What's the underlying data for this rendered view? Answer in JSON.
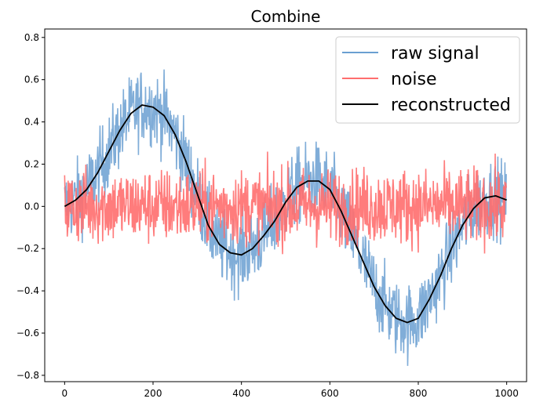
{
  "chart_data": {
    "type": "line",
    "title": "Combine",
    "xlabel": "",
    "ylabel": "",
    "xlim": [
      -45,
      1045
    ],
    "ylim": [
      -0.83,
      0.84
    ],
    "x_ticks": [
      0,
      200,
      400,
      600,
      800,
      1000
    ],
    "x_tick_labels": [
      "0",
      "200",
      "400",
      "600",
      "800",
      "1000"
    ],
    "y_ticks": [
      -0.8,
      -0.6,
      -0.4,
      -0.2,
      0.0,
      0.2,
      0.4,
      0.6,
      0.8
    ],
    "y_tick_labels": [
      "−0.8",
      "−0.6",
      "−0.4",
      "−0.2",
      "0.0",
      "0.2",
      "0.4",
      "0.6",
      "0.8"
    ],
    "grid": false,
    "legend_position": "top-right",
    "series": [
      {
        "name": "raw signal",
        "color": "#6a9fd1",
        "alpha": 0.85,
        "n_points": 1000,
        "x": [
          0,
          25,
          50,
          75,
          100,
          125,
          150,
          175,
          200,
          225,
          250,
          275,
          300,
          325,
          350,
          375,
          400,
          425,
          450,
          475,
          500,
          525,
          550,
          575,
          600,
          625,
          650,
          675,
          700,
          725,
          750,
          775,
          800,
          825,
          850,
          875,
          900,
          925,
          950,
          975,
          1000
        ],
        "values": [
          0.0,
          0.03,
          0.08,
          0.16,
          0.26,
          0.36,
          0.44,
          0.48,
          0.47,
          0.43,
          0.34,
          0.21,
          0.06,
          -0.09,
          -0.18,
          -0.22,
          -0.23,
          -0.2,
          -0.14,
          -0.07,
          0.02,
          0.09,
          0.12,
          0.12,
          0.08,
          -0.02,
          -0.14,
          -0.26,
          -0.38,
          -0.47,
          -0.53,
          -0.55,
          -0.53,
          -0.44,
          -0.33,
          -0.2,
          -0.09,
          -0.01,
          0.04,
          0.05,
          0.03
        ],
        "noise_amplitude": 0.1,
        "max": 0.76,
        "min": -0.76
      },
      {
        "name": "noise",
        "color": "#ff6e6e",
        "alpha": 0.9,
        "n_points": 1000,
        "center": 0.0,
        "noise_amplitude": 0.1,
        "max": 0.29,
        "min": -0.35
      },
      {
        "name": "reconstructed",
        "color": "#000000",
        "x": [
          0,
          25,
          50,
          75,
          100,
          125,
          150,
          175,
          200,
          225,
          250,
          275,
          300,
          325,
          350,
          375,
          400,
          425,
          450,
          475,
          500,
          525,
          550,
          575,
          600,
          625,
          650,
          675,
          700,
          725,
          750,
          775,
          800,
          825,
          850,
          875,
          900,
          925,
          950,
          975,
          1000
        ],
        "values": [
          0.0,
          0.03,
          0.08,
          0.16,
          0.26,
          0.36,
          0.44,
          0.48,
          0.47,
          0.43,
          0.34,
          0.21,
          0.06,
          -0.09,
          -0.18,
          -0.22,
          -0.23,
          -0.2,
          -0.14,
          -0.07,
          0.02,
          0.09,
          0.12,
          0.12,
          0.08,
          -0.02,
          -0.14,
          -0.26,
          -0.38,
          -0.47,
          -0.53,
          -0.55,
          -0.53,
          -0.44,
          -0.33,
          -0.2,
          -0.09,
          -0.01,
          0.04,
          0.05,
          0.03
        ]
      }
    ]
  }
}
